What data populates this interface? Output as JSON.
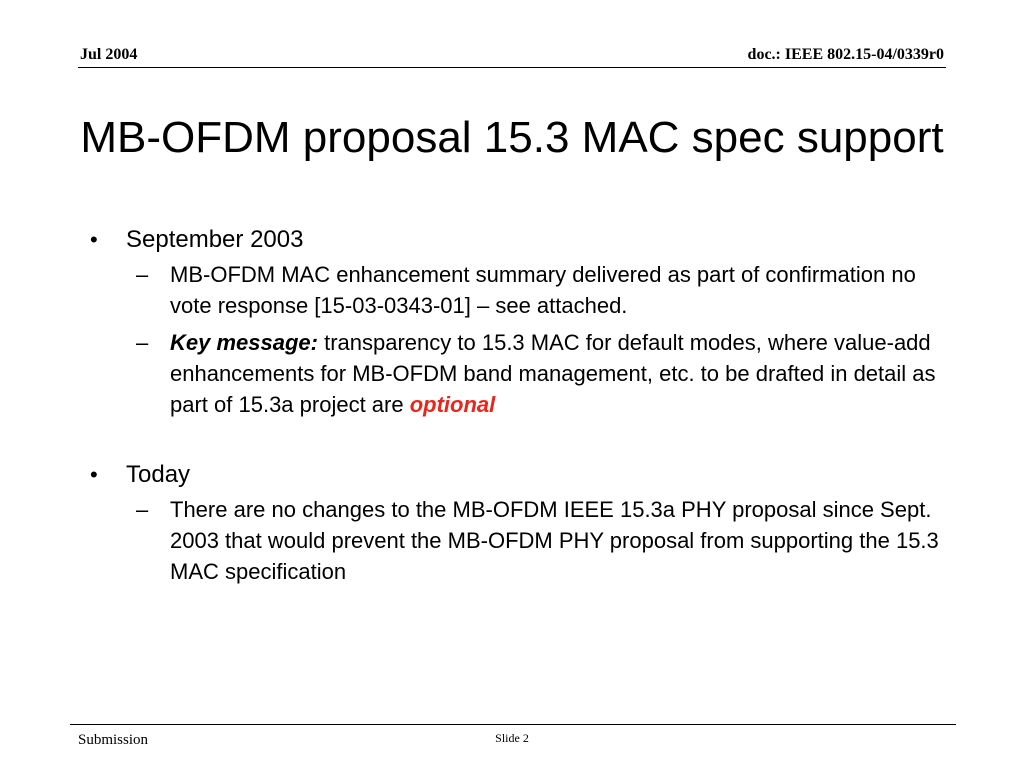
{
  "header": {
    "date": "Jul 2004",
    "doc_id": "doc.: IEEE 802.15-04/0339r0"
  },
  "title": "MB-OFDM proposal 15.3 MAC spec support",
  "bullets": [
    {
      "marker": "•",
      "text": "September 2003",
      "subs": [
        {
          "marker": "–",
          "text": "MB-OFDM MAC enhancement summary delivered as part of confirmation no vote response [15-03-0343-01] – see attached."
        },
        {
          "marker": "–",
          "key_label": "Key message:",
          "text": " transparency to 15.3 MAC for default modes, where value-add enhancements for MB-OFDM band management, etc. to be drafted in detail as part of 15.3a project are ",
          "highlight": "optional"
        }
      ]
    },
    {
      "marker": "•",
      "text": "Today",
      "subs": [
        {
          "marker": "–",
          "text": "There are no changes to the MB-OFDM IEEE 15.3a PHY proposal since Sept. 2003 that would prevent the MB-OFDM PHY proposal from supporting the 15.3 MAC specification"
        }
      ]
    }
  ],
  "footer": {
    "left": "Submission",
    "slide_label": "Slide 2"
  },
  "colors": {
    "highlight": "#e8261c"
  }
}
